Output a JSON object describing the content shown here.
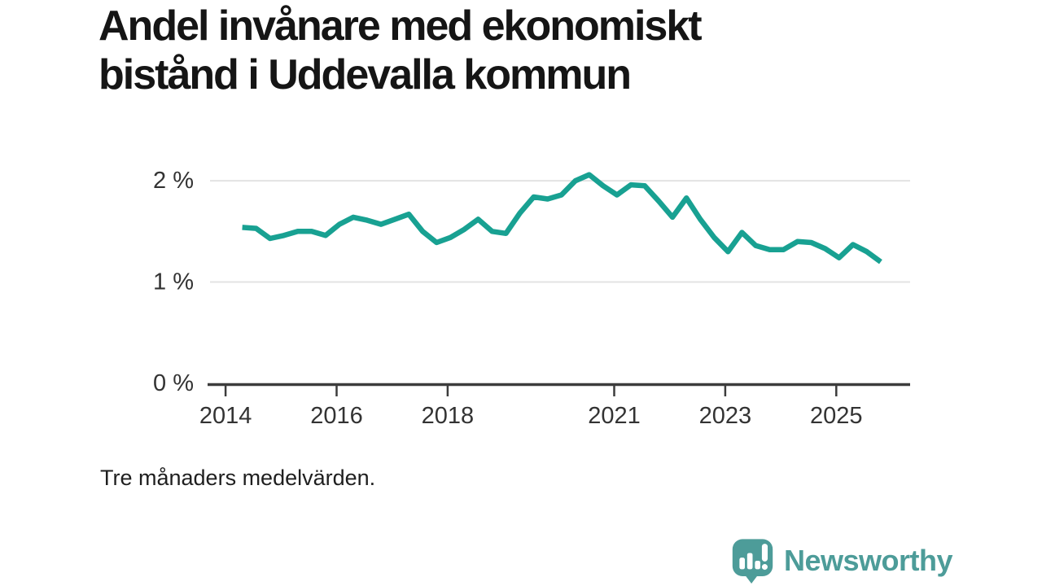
{
  "title": "Andel invånare med ekonomiskt bistånd i Uddevalla kommun",
  "caption": "Tre månaders medelvärden.",
  "branding": {
    "wordmark": "Newsworthy",
    "icon": "newsworthy-speech-bubble-bar-chart-icon",
    "color": "#4d9c99"
  },
  "colors": {
    "line": "#18a192",
    "grid": "#e3e3e3",
    "axis": "#3c3c3c",
    "tick_text": "#333333",
    "title_text": "#151515",
    "caption_text": "#1f1f1f"
  },
  "chart_data": {
    "type": "line",
    "title": "Andel invånare med ekonomiskt bistånd i Uddevalla kommun",
    "note": "Tre månaders medelvärden.",
    "xlabel": "",
    "ylabel": "",
    "grid": "horizontal-only",
    "legend": "none",
    "xlim": [
      2013.72,
      2026.33
    ],
    "ylim": [
      0,
      2.25
    ],
    "x_ticks": [
      {
        "value": 2014,
        "label": "2014"
      },
      {
        "value": 2016,
        "label": "2016"
      },
      {
        "value": 2018,
        "label": "2018"
      },
      {
        "value": 2021,
        "label": "2021"
      },
      {
        "value": 2023,
        "label": "2023"
      },
      {
        "value": 2025,
        "label": "2025"
      }
    ],
    "y_ticks": [
      {
        "value": 2,
        "label": "2 %"
      },
      {
        "value": 1,
        "label": "1 %"
      },
      {
        "value": 0,
        "label": "0 %"
      }
    ],
    "series": [
      {
        "name": "Andel invånare med ekonomiskt bistånd",
        "color": "#18a192",
        "x": [
          2014.3,
          2014.55,
          2014.8,
          2015.05,
          2015.3,
          2015.55,
          2015.8,
          2016.05,
          2016.3,
          2016.55,
          2016.8,
          2017.05,
          2017.3,
          2017.55,
          2017.8,
          2018.05,
          2018.3,
          2018.55,
          2018.8,
          2019.05,
          2019.3,
          2019.55,
          2019.8,
          2020.05,
          2020.3,
          2020.55,
          2020.8,
          2021.05,
          2021.3,
          2021.55,
          2021.8,
          2022.05,
          2022.3,
          2022.55,
          2022.8,
          2023.05,
          2023.3,
          2023.55,
          2023.8,
          2024.05,
          2024.3,
          2024.55,
          2024.8,
          2025.05,
          2025.3,
          2025.55,
          2025.8
        ],
        "values": [
          1.54,
          1.53,
          1.43,
          1.46,
          1.5,
          1.5,
          1.46,
          1.57,
          1.64,
          1.61,
          1.57,
          1.62,
          1.67,
          1.5,
          1.39,
          1.44,
          1.52,
          1.62,
          1.5,
          1.48,
          1.68,
          1.84,
          1.82,
          1.86,
          2.0,
          2.06,
          1.95,
          1.86,
          1.96,
          1.95,
          1.8,
          1.64,
          1.83,
          1.62,
          1.44,
          1.3,
          1.49,
          1.36,
          1.32,
          1.32,
          1.4,
          1.39,
          1.33,
          1.24,
          1.37,
          1.3,
          1.2
        ]
      }
    ]
  }
}
